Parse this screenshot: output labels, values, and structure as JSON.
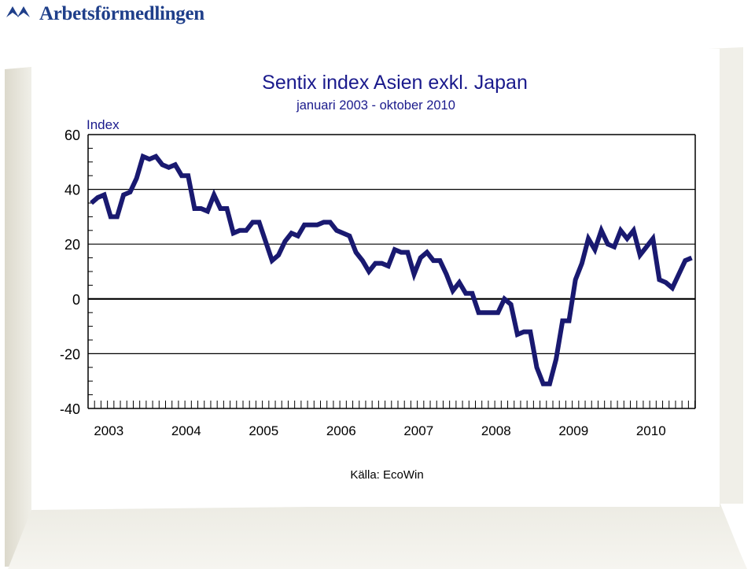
{
  "brand": {
    "logo_text": "Arbetsförmedlingen",
    "color": "#1f3f8a"
  },
  "chart_data": {
    "type": "line",
    "title": "Sentix index Asien exkl. Japan",
    "subtitle": "januari 2003 - oktober 2010",
    "ylabel": "Index",
    "ylim": [
      -40,
      60
    ],
    "yticks": [
      "-40",
      "-20",
      "0",
      "20",
      "40",
      "60"
    ],
    "xtick_labels": [
      "2003",
      "2004",
      "2005",
      "2006",
      "2007",
      "2008",
      "2009",
      "2010"
    ],
    "grid": "horizontal at 40, 20, 0, -20",
    "source_text": "Källa:  EcoWin",
    "line_color": "#191970",
    "x": [
      "2003-01",
      "2003-02",
      "2003-03",
      "2003-04",
      "2003-05",
      "2003-06",
      "2003-07",
      "2003-08",
      "2003-09",
      "2003-10",
      "2003-11",
      "2003-12",
      "2004-01",
      "2004-02",
      "2004-03",
      "2004-04",
      "2004-05",
      "2004-06",
      "2004-07",
      "2004-08",
      "2004-09",
      "2004-10",
      "2004-11",
      "2004-12",
      "2005-01",
      "2005-02",
      "2005-03",
      "2005-04",
      "2005-05",
      "2005-06",
      "2005-07",
      "2005-08",
      "2005-09",
      "2005-10",
      "2005-11",
      "2005-12",
      "2006-01",
      "2006-02",
      "2006-03",
      "2006-04",
      "2006-05",
      "2006-06",
      "2006-07",
      "2006-08",
      "2006-09",
      "2006-10",
      "2006-11",
      "2006-12",
      "2007-01",
      "2007-02",
      "2007-03",
      "2007-04",
      "2007-05",
      "2007-06",
      "2007-07",
      "2007-08",
      "2007-09",
      "2007-10",
      "2007-11",
      "2007-12",
      "2008-01",
      "2008-02",
      "2008-03",
      "2008-04",
      "2008-05",
      "2008-06",
      "2008-07",
      "2008-08",
      "2008-09",
      "2008-10",
      "2008-11",
      "2008-12",
      "2009-01",
      "2009-02",
      "2009-03",
      "2009-04",
      "2009-05",
      "2009-06",
      "2009-07",
      "2009-08",
      "2009-09",
      "2009-10",
      "2009-11",
      "2009-12",
      "2010-01",
      "2010-02",
      "2010-03",
      "2010-04",
      "2010-05",
      "2010-06",
      "2010-07",
      "2010-08",
      "2010-09",
      "2010-10"
    ],
    "series": [
      {
        "values": [
          35,
          37,
          38,
          30,
          30,
          38,
          39,
          44,
          52,
          51,
          52,
          49,
          48,
          49,
          45,
          45,
          33,
          33,
          32,
          38,
          33,
          33,
          24,
          25,
          25,
          28,
          28,
          21,
          14,
          16,
          21,
          24,
          23,
          27,
          27,
          27,
          28,
          28,
          25,
          24,
          23,
          17,
          14,
          10,
          13,
          13,
          12,
          18,
          17,
          17,
          9,
          15,
          17,
          14,
          14,
          9,
          3,
          6,
          2,
          2,
          -5,
          -5,
          -5,
          -5,
          0,
          -2,
          -13,
          -12,
          -12,
          -25,
          -31,
          -31,
          -22,
          -8,
          -8,
          7,
          13,
          22,
          18,
          25,
          20,
          19,
          25,
          22,
          25,
          16,
          19,
          22,
          7,
          6,
          4,
          9,
          14,
          15
        ]
      }
    ]
  }
}
